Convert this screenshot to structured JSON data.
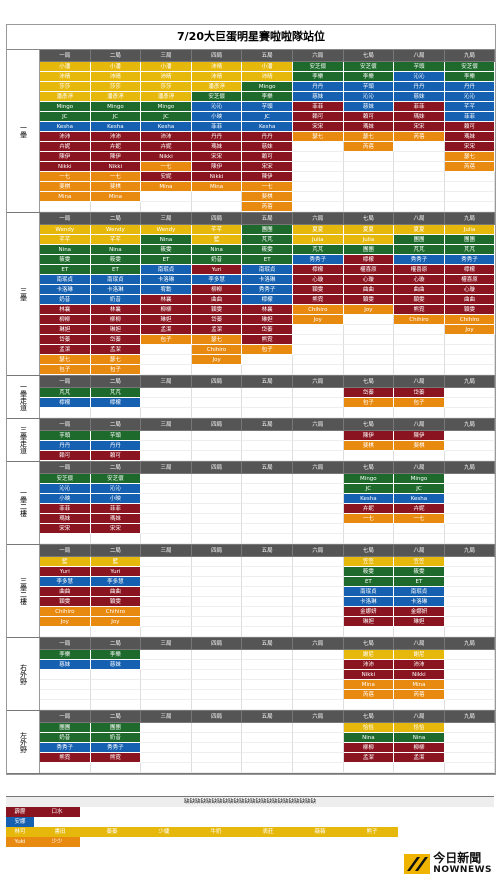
{
  "title": "7/20大巨蛋明星賽啦啦隊站位",
  "innings": [
    "一局",
    "二局",
    "三局",
    "四局",
    "五局",
    "六局",
    "七局",
    "八局",
    "九局"
  ],
  "colors": {
    "y": "#e6b80c",
    "g": "#1e6a2c",
    "b": "#1560b0",
    "r": "#8a1520",
    "o": "#e98a10",
    "header": "#555555"
  },
  "sections": [
    {
      "label": "一壘",
      "rows": [
        [
          "y:小潘",
          "y:小潘",
          "y:小潘",
          "y:沛晴",
          "y:小潘",
          "g:安芝儇",
          "g:安芝儇",
          "g:芋頭",
          "g:安芝儇"
        ],
        [
          "y:沛晴",
          "y:沛晴",
          "y:沛晴",
          "y:沛晴",
          "y:沛晴",
          "g:李樂",
          "g:李樂",
          "b:沁沁",
          "g:李樂"
        ],
        [
          "y:莎莎",
          "y:莎莎",
          "y:莎莎",
          "y:潘彥渟",
          "g:Mingo",
          "b:丹丹",
          "b:芋頭",
          "b:丹丹",
          "b:丹丹"
        ],
        [
          "y:潘彥渟",
          "y:潘彥渟",
          "y:潘彥渟",
          "g:安芝儇",
          "g:李樂",
          "b:慈妹",
          "b:沁沁",
          "b:慈妹",
          "b:沁沁"
        ],
        [
          "g:Mingo",
          "g:Mingo",
          "g:Mingo",
          "b:沁沁",
          "b:芋頭",
          "r:菲菲",
          "b:慈妹",
          "r:菲菲",
          "b:芊芊"
        ],
        [
          "g:JC",
          "g:JC",
          "g:JC",
          "b:小映",
          "b:JC",
          "r:賴可",
          "r:賴可",
          "r:瑪妹",
          "b:菲菲"
        ],
        [
          "b:Kesha",
          "b:Kesha",
          "b:Kesha",
          "b:菲菲",
          "b:Kesha",
          "r:宋宋",
          "r:瑪妹",
          "r:宋宋",
          "r:賴可"
        ],
        [
          "r:沛沛",
          "r:沛沛",
          "r:沛沛",
          "r:丹丹",
          "r:丹丹",
          "o:瑟七",
          "o:瑟七",
          "o:芮蓓",
          "r:瑪妹"
        ],
        [
          "r:卉妮",
          "r:卉妮",
          "r:卉妮",
          "r:瑪妹",
          "r:慈妹",
          "e:",
          "o:芮蓓",
          "e:",
          "r:宋宋"
        ],
        [
          "r:陳伊",
          "r:陳伊",
          "r:Nikki",
          "r:宋宋",
          "r:賴可",
          "e:",
          "e:",
          "e:",
          "o:瑟七"
        ],
        [
          "r:Nikki",
          "r:Nikki",
          "o:一七",
          "r:陳伊",
          "r:宋宋",
          "e:",
          "e:",
          "e:",
          "o:芮蓓"
        ],
        [
          "o:一七",
          "o:一七",
          "r:安妮",
          "r:Nikki",
          "r:陳伊",
          "e:",
          "e:",
          "e:",
          "e:"
        ],
        [
          "o:斐棋",
          "o:斐棋",
          "o:Mina",
          "o:Mina",
          "o:一七",
          "e:",
          "e:",
          "e:",
          "e:"
        ],
        [
          "o:Mina",
          "o:Mina",
          "e:",
          "e:",
          "o:斐棋",
          "e:",
          "e:",
          "e:",
          "e:"
        ],
        [
          "e:",
          "e:",
          "e:",
          "e:",
          "o:芮蓓",
          "e:",
          "e:",
          "e:",
          "e:"
        ]
      ]
    },
    {
      "label": "三壘",
      "rows": [
        [
          "y:Wendy",
          "y:Wendy",
          "y:Wendy",
          "y:芊芊",
          "g:團團",
          "y:夏夏",
          "y:夏夏",
          "y:夏夏",
          "y:Julia"
        ],
        [
          "y:芊芊",
          "y:芊芊",
          "g:Nina",
          "y:籃",
          "g:芃芃",
          "y:Julia",
          "y:Julia",
          "g:團團",
          "g:團團"
        ],
        [
          "g:Nina",
          "g:Nina",
          "g:筱雯",
          "g:Nina",
          "g:筱雯",
          "g:芃芃",
          "g:團團",
          "g:芃芃",
          "g:芃芃"
        ],
        [
          "g:筱雯",
          "g:筱雯",
          "g:ET",
          "g:奶昔",
          "g:ET",
          "b:秀秀子",
          "r:檸檬",
          "b:秀秀子",
          "b:秀秀子"
        ],
        [
          "g:ET",
          "g:ET",
          "b:南珉貞",
          "r:Yuri",
          "b:南珉貞",
          "r:檸檬",
          "r:權喜原",
          "r:權喜原",
          "r:檸檬"
        ],
        [
          "b:南珉貞",
          "b:南珉貞",
          "b:卡洛琳",
          "b:李多慧",
          "b:卡洛琳",
          "r:心璇",
          "r:心璇",
          "r:心璇",
          "r:權喜原"
        ],
        [
          "b:卡洛琳",
          "b:卡洛琳",
          "b:宥勳",
          "r:柳柳",
          "b:秀秀子",
          "r:穎雯",
          "r:曲曲",
          "r:曲曲",
          "r:心璇"
        ],
        [
          "b:奶昔",
          "b:奶昔",
          "r:林襄",
          "r:曲曲",
          "b:檸檬",
          "r:熊霓",
          "r:穎雯",
          "r:穎雯",
          "r:曲曲"
        ],
        [
          "r:林襄",
          "r:林襄",
          "r:柳柳",
          "r:穎雯",
          "r:林襄",
          "o:Chihiro",
          "o:Joy",
          "r:熊霓",
          "r:穎雯"
        ],
        [
          "r:柳柳",
          "r:柳柳",
          "r:琳妲",
          "r:岱蓁",
          "r:琳妲",
          "o:Joy",
          "e:",
          "o:Chihiro",
          "o:Chihiro"
        ],
        [
          "r:琳妲",
          "r:琳妲",
          "r:孟潔",
          "r:孟潔",
          "r:岱蓁",
          "e:",
          "e:",
          "e:",
          "o:Joy"
        ],
        [
          "r:岱蓁",
          "r:岱蓁",
          "o:包子",
          "o:瑟七",
          "r:熊霓",
          "e:",
          "e:",
          "e:",
          "e:"
        ],
        [
          "r:孟潔",
          "r:孟潔",
          "e:",
          "o:Chihiro",
          "o:包子",
          "e:",
          "e:",
          "e:",
          "e:"
        ],
        [
          "o:瑟七",
          "o:瑟七",
          "e:",
          "o:Joy",
          "e:",
          "e:",
          "e:",
          "e:",
          "e:"
        ],
        [
          "o:包子",
          "o:包子",
          "e:",
          "e:",
          "e:",
          "e:",
          "e:",
          "e:",
          "e:"
        ]
      ]
    },
    {
      "label": "一壘走道",
      "rows": [
        [
          "g:芃芃",
          "g:芃芃",
          "e:",
          "e:",
          "e:",
          "e:",
          "r:岱蓁",
          "r:岱蓁",
          "e:"
        ],
        [
          "b:檸檬",
          "b:檸檬",
          "e:",
          "e:",
          "e:",
          "e:",
          "o:包子",
          "o:包子",
          "e:"
        ],
        [
          "e:",
          "e:",
          "e:",
          "e:",
          "e:",
          "e:",
          "e:",
          "e:",
          "e:"
        ]
      ]
    },
    {
      "label": "三壘走道",
      "rows": [
        [
          "g:芋頭",
          "g:芋頭",
          "e:",
          "e:",
          "e:",
          "e:",
          "r:陳伊",
          "r:陳伊",
          "e:"
        ],
        [
          "b:丹丹",
          "b:丹丹",
          "e:",
          "e:",
          "e:",
          "e:",
          "o:斐棋",
          "o:斐棋",
          "e:"
        ],
        [
          "r:賴可",
          "r:賴可",
          "e:",
          "e:",
          "e:",
          "e:",
          "e:",
          "e:",
          "e:"
        ]
      ]
    },
    {
      "label": "一壘二樓",
      "rows": [
        [
          "g:安芝儇",
          "g:安芝儇",
          "e:",
          "e:",
          "e:",
          "e:",
          "g:Mingo",
          "g:Mingo",
          "e:"
        ],
        [
          "b:沁沁",
          "b:沁沁",
          "e:",
          "e:",
          "e:",
          "e:",
          "g:JC",
          "g:JC",
          "e:"
        ],
        [
          "b:小映",
          "b:小映",
          "e:",
          "e:",
          "e:",
          "e:",
          "b:Kesha",
          "b:Kesha",
          "e:"
        ],
        [
          "r:菲菲",
          "r:菲菲",
          "e:",
          "e:",
          "e:",
          "e:",
          "r:卉妮",
          "r:卉妮",
          "e:"
        ],
        [
          "r:瑪妹",
          "r:瑪妹",
          "e:",
          "e:",
          "e:",
          "e:",
          "o:一七",
          "o:一七",
          "e:"
        ],
        [
          "r:宋宋",
          "r:宋宋",
          "e:",
          "e:",
          "e:",
          "e:",
          "e:",
          "e:",
          "e:"
        ],
        [
          "e:",
          "e:",
          "e:",
          "e:",
          "e:",
          "e:",
          "e:",
          "e:",
          "e:"
        ]
      ]
    },
    {
      "label": "三壘二樓",
      "rows": [
        [
          "y:籃",
          "y:籃",
          "e:",
          "e:",
          "e:",
          "e:",
          "y:笠笠",
          "y:笠笠",
          "e:"
        ],
        [
          "r:Yuri",
          "r:Yuri",
          "e:",
          "e:",
          "e:",
          "e:",
          "g:筱雯",
          "g:筱雯",
          "e:"
        ],
        [
          "b:李多慧",
          "b:李多慧",
          "e:",
          "e:",
          "e:",
          "e:",
          "g:ET",
          "g:ET",
          "e:"
        ],
        [
          "r:曲曲",
          "r:曲曲",
          "e:",
          "e:",
          "e:",
          "e:",
          "b:南珉貞",
          "b:南珉貞",
          "e:"
        ],
        [
          "r:穎雯",
          "r:穎雯",
          "e:",
          "e:",
          "e:",
          "e:",
          "b:卡洛琳",
          "b:卡洛琳",
          "e:"
        ],
        [
          "o:Chihiro",
          "o:Chihiro",
          "e:",
          "e:",
          "e:",
          "e:",
          "r:金娜妍",
          "r:金娜妍",
          "e:"
        ],
        [
          "o:Joy",
          "o:Joy",
          "e:",
          "e:",
          "e:",
          "e:",
          "r:琳妲",
          "r:琳妲",
          "e:"
        ],
        [
          "e:",
          "e:",
          "e:",
          "e:",
          "e:",
          "e:",
          "e:",
          "e:",
          "e:"
        ]
      ]
    },
    {
      "label": "右外野",
      "rows": [
        [
          "g:李樂",
          "g:李樂",
          "e:",
          "e:",
          "e:",
          "e:",
          "y:謝尼",
          "y:謝尼",
          "e:"
        ],
        [
          "b:慈妹",
          "b:慈妹",
          "e:",
          "e:",
          "e:",
          "e:",
          "r:沛沛",
          "r:沛沛",
          "e:"
        ],
        [
          "e:",
          "e:",
          "e:",
          "e:",
          "e:",
          "e:",
          "r:Nikki",
          "r:Nikki",
          "e:"
        ],
        [
          "e:",
          "e:",
          "e:",
          "e:",
          "e:",
          "e:",
          "o:Mina",
          "o:Mina",
          "e:"
        ],
        [
          "e:",
          "e:",
          "e:",
          "e:",
          "e:",
          "e:",
          "o:芮蓓",
          "o:芮蓓",
          "e:"
        ],
        [
          "e:",
          "e:",
          "e:",
          "e:",
          "e:",
          "e:",
          "e:",
          "e:",
          "e:"
        ]
      ]
    },
    {
      "label": "左外野",
      "rows": [
        [
          "g:團團",
          "g:團團",
          "e:",
          "e:",
          "e:",
          "e:",
          "y:恰恰",
          "y:恰恰",
          "e:"
        ],
        [
          "g:奶昔",
          "g:奶昔",
          "e:",
          "e:",
          "e:",
          "e:",
          "g:Nina",
          "g:Nina",
          "e:"
        ],
        [
          "b:秀秀子",
          "b:秀秀子",
          "e:",
          "e:",
          "e:",
          "e:",
          "r:柳柳",
          "r:柳柳",
          "e:"
        ],
        [
          "r:熊霓",
          "r:熊霓",
          "e:",
          "e:",
          "e:",
          "e:",
          "r:孟潔",
          "r:孟潔",
          "e:"
        ],
        [
          "e:",
          "e:",
          "e:",
          "e:",
          "e:",
          "e:",
          "e:",
          "e:",
          "e:"
        ]
      ]
    }
  ],
  "strip_header": "缺缺缺缺缺缺缺缺缺缺缺缺缺缺缺缺缺缺缺缺缺缺缺缺",
  "strip_rows": [
    [
      [
        "r:霹靂"
      ],
      [
        "r:口水"
      ]
    ],
    [
      [
        "b:安娜"
      ]
    ],
    [
      [
        "y:林可"
      ],
      [
        "y:書旧"
      ],
      [
        "y:蓁蓁"
      ],
      [
        "y:少婕"
      ],
      [
        "y:牛奶"
      ],
      [
        "y:表莊"
      ],
      [
        "y:薇薇"
      ],
      [
        "y:熊子"
      ]
    ],
    [
      [
        "o:Yuki"
      ],
      [
        "o:少少"
      ]
    ]
  ],
  "logo": {
    "line1": "今日新聞",
    "line2": "NOWNEWS"
  }
}
